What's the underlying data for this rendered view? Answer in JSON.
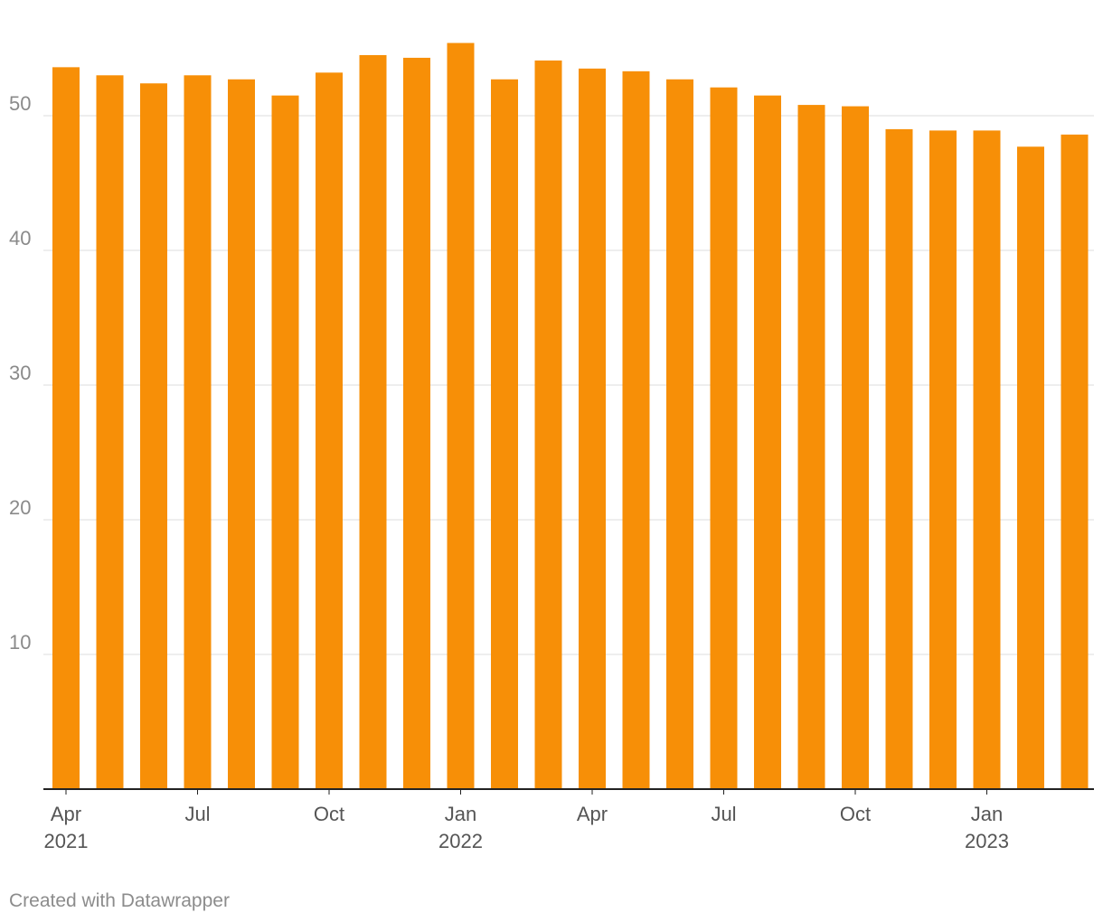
{
  "chart_data": {
    "type": "bar",
    "title": "",
    "xlabel": "",
    "ylabel": "",
    "ylim": [
      0,
      56
    ],
    "y_ticks": [
      10,
      20,
      30,
      40,
      50
    ],
    "grid": true,
    "bar_color": "#f78f07",
    "categories": [
      "Apr 2021",
      "May 2021",
      "Jun 2021",
      "Jul 2021",
      "Aug 2021",
      "Sep 2021",
      "Oct 2021",
      "Nov 2021",
      "Dec 2021",
      "Jan 2022",
      "Feb 2022",
      "Mar 2022",
      "Apr 2022",
      "May 2022",
      "Jun 2022",
      "Jul 2022",
      "Aug 2022",
      "Sep 2022",
      "Oct 2022",
      "Nov 2022",
      "Dec 2022",
      "Jan 2023",
      "Feb 2023",
      "Mar 2023"
    ],
    "values": [
      53.6,
      53.0,
      52.4,
      53.0,
      52.7,
      51.5,
      53.2,
      54.5,
      54.3,
      55.4,
      52.7,
      54.1,
      53.5,
      53.3,
      52.7,
      52.1,
      51.5,
      50.8,
      50.7,
      49.0,
      48.9,
      48.9,
      47.7,
      48.6
    ],
    "x_tick_labels": [
      {
        "index": 0,
        "line1": "Apr",
        "line2": "2021"
      },
      {
        "index": 3,
        "line1": "Jul",
        "line2": ""
      },
      {
        "index": 6,
        "line1": "Oct",
        "line2": ""
      },
      {
        "index": 9,
        "line1": "Jan",
        "line2": "2022"
      },
      {
        "index": 12,
        "line1": "Apr",
        "line2": ""
      },
      {
        "index": 15,
        "line1": "Jul",
        "line2": ""
      },
      {
        "index": 18,
        "line1": "Oct",
        "line2": ""
      },
      {
        "index": 21,
        "line1": "Jan",
        "line2": "2023"
      }
    ]
  },
  "footer": {
    "credit": "Created with Datawrapper"
  }
}
